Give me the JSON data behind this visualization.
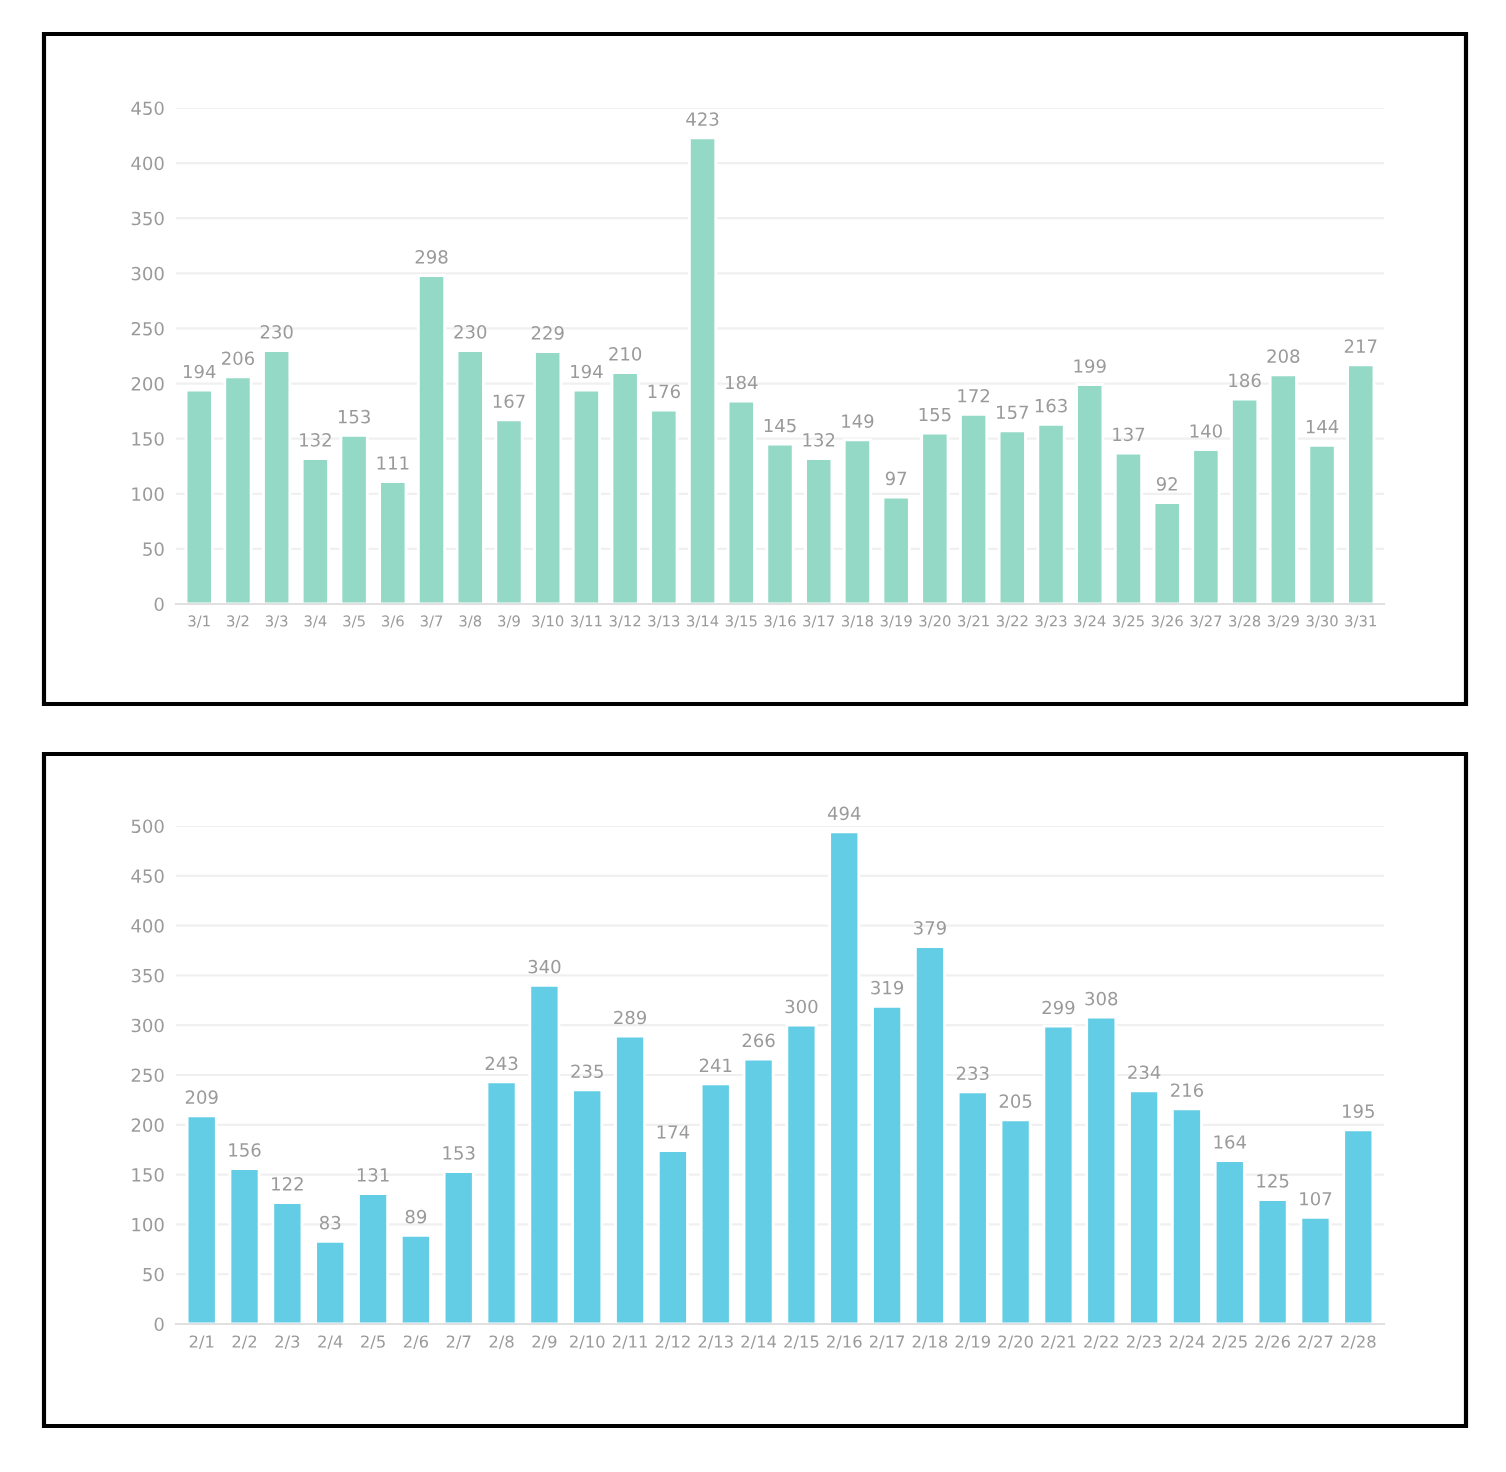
{
  "chart_data": [
    {
      "type": "bar",
      "categories": [
        "3/1",
        "3/2",
        "3/3",
        "3/4",
        "3/5",
        "3/6",
        "3/7",
        "3/8",
        "3/9",
        "3/10",
        "3/11",
        "3/12",
        "3/13",
        "3/14",
        "3/15",
        "3/16",
        "3/17",
        "3/18",
        "3/19",
        "3/20",
        "3/21",
        "3/22",
        "3/23",
        "3/24",
        "3/25",
        "3/26",
        "3/27",
        "3/28",
        "3/29",
        "3/30",
        "3/31"
      ],
      "values": [
        194,
        206,
        230,
        132,
        153,
        111,
        298,
        230,
        167,
        229,
        194,
        210,
        176,
        423,
        184,
        145,
        132,
        149,
        97,
        155,
        172,
        157,
        163,
        199,
        137,
        92,
        140,
        186,
        208,
        144,
        217
      ],
      "color": "#93d9c6",
      "ylim": [
        0,
        450
      ],
      "yticks": [
        0,
        50,
        100,
        150,
        200,
        250,
        300,
        350,
        400,
        450
      ],
      "grid": "y",
      "data_labels": true
    },
    {
      "type": "bar",
      "categories": [
        "2/1",
        "2/2",
        "2/3",
        "2/4",
        "2/5",
        "2/6",
        "2/7",
        "2/8",
        "2/9",
        "2/10",
        "2/11",
        "2/12",
        "2/13",
        "2/14",
        "2/15",
        "2/16",
        "2/17",
        "2/18",
        "2/19",
        "2/20",
        "2/21",
        "2/22",
        "2/23",
        "2/24",
        "2/25",
        "2/26",
        "2/27",
        "2/28"
      ],
      "values": [
        209,
        156,
        122,
        83,
        131,
        89,
        153,
        243,
        340,
        235,
        289,
        174,
        241,
        266,
        300,
        494,
        319,
        379,
        233,
        205,
        299,
        308,
        234,
        216,
        164,
        125,
        107,
        195
      ],
      "color": "#62cde4",
      "ylim": [
        0,
        500
      ],
      "yticks": [
        0,
        50,
        100,
        150,
        200,
        250,
        300,
        350,
        400,
        450,
        500
      ],
      "grid": "y",
      "data_labels": true
    }
  ]
}
